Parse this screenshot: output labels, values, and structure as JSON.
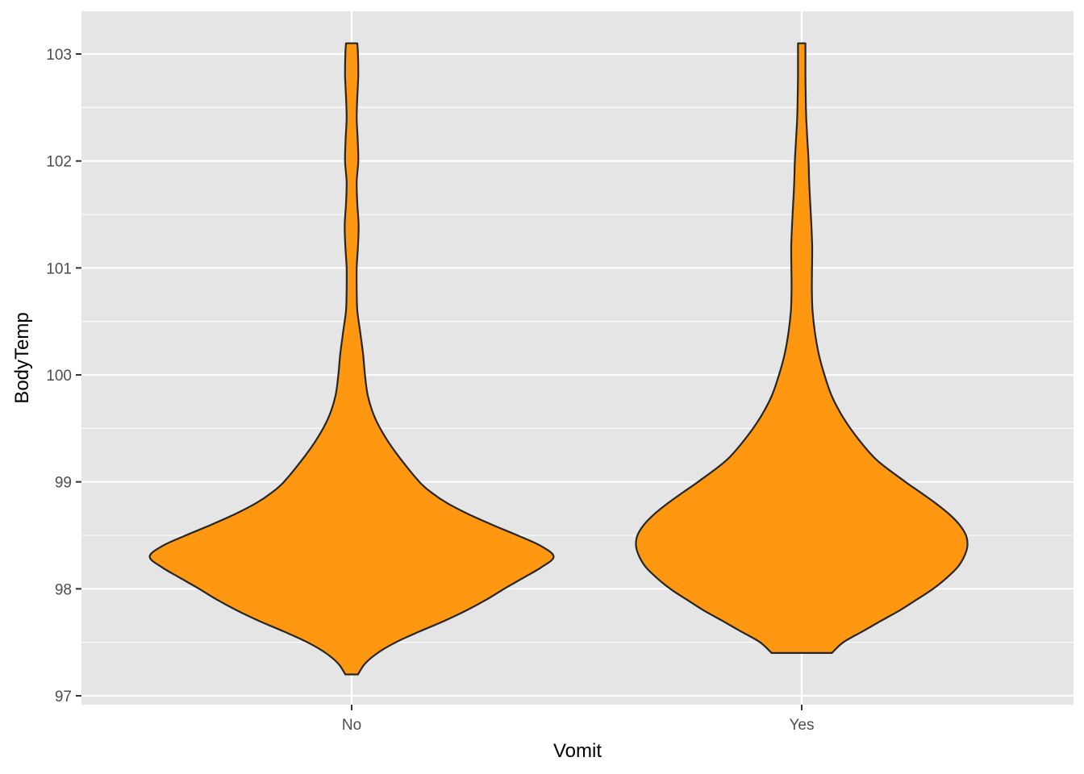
{
  "chart_data": {
    "type": "violin",
    "title": "",
    "xlabel": "Vomit",
    "ylabel": "BodyTemp",
    "categories": [
      "No",
      "Yes"
    ],
    "y_ticks": [
      "97",
      "98",
      "99",
      "100",
      "101",
      "102",
      "103"
    ],
    "ylim": [
      96.92,
      103.4
    ],
    "grid": true,
    "legend": "none",
    "fill_color": "#FF9810",
    "outline_color": "#262626",
    "panel_color": "#E5E5E5",
    "violins": [
      {
        "category": "No",
        "y_range": [
          97.2,
          103.1
        ],
        "profile": [
          [
            97.2,
            0.049
          ],
          [
            97.3,
            0.103
          ],
          [
            97.4,
            0.201
          ],
          [
            97.5,
            0.342
          ],
          [
            97.6,
            0.523
          ],
          [
            97.7,
            0.718
          ],
          [
            97.8,
            0.892
          ],
          [
            97.9,
            1.046
          ],
          [
            98.0,
            1.182
          ],
          [
            98.1,
            1.326
          ],
          [
            98.2,
            1.468
          ],
          [
            98.3,
            1.565
          ],
          [
            98.4,
            1.468
          ],
          [
            98.5,
            1.285
          ],
          [
            98.6,
            1.087
          ],
          [
            98.7,
            0.902
          ],
          [
            98.8,
            0.742
          ],
          [
            98.9,
            0.618
          ],
          [
            99.0,
            0.525
          ],
          [
            99.2,
            0.388
          ],
          [
            99.4,
            0.27
          ],
          [
            99.6,
            0.18
          ],
          [
            99.8,
            0.126
          ],
          [
            100.0,
            0.103
          ],
          [
            100.2,
            0.088
          ],
          [
            100.4,
            0.066
          ],
          [
            100.6,
            0.044
          ],
          [
            100.8,
            0.039
          ],
          [
            101.0,
            0.039
          ],
          [
            101.2,
            0.049
          ],
          [
            101.4,
            0.054
          ],
          [
            101.6,
            0.044
          ],
          [
            101.8,
            0.039
          ],
          [
            102.0,
            0.051
          ],
          [
            102.2,
            0.047
          ],
          [
            102.4,
            0.039
          ],
          [
            102.6,
            0.044
          ],
          [
            102.8,
            0.051
          ],
          [
            103.0,
            0.049
          ],
          [
            103.1,
            0.044
          ]
        ]
      },
      {
        "category": "Yes",
        "y_range": [
          97.4,
          103.1
        ],
        "profile": [
          [
            97.4,
            0.234
          ],
          [
            97.5,
            0.322
          ],
          [
            97.6,
            0.468
          ],
          [
            97.7,
            0.614
          ],
          [
            97.8,
            0.761
          ],
          [
            97.9,
            0.892
          ],
          [
            98.0,
            1.019
          ],
          [
            98.1,
            1.121
          ],
          [
            98.2,
            1.206
          ],
          [
            98.3,
            1.258
          ],
          [
            98.4,
            1.284
          ],
          [
            98.5,
            1.273
          ],
          [
            98.6,
            1.222
          ],
          [
            98.7,
            1.141
          ],
          [
            98.8,
            1.038
          ],
          [
            98.9,
            0.922
          ],
          [
            99.0,
            0.804
          ],
          [
            99.2,
            0.585
          ],
          [
            99.4,
            0.439
          ],
          [
            99.6,
            0.322
          ],
          [
            99.8,
            0.234
          ],
          [
            100.0,
            0.176
          ],
          [
            100.2,
            0.131
          ],
          [
            100.4,
            0.102
          ],
          [
            100.6,
            0.084
          ],
          [
            100.8,
            0.079
          ],
          [
            101.0,
            0.08
          ],
          [
            101.2,
            0.081
          ],
          [
            101.4,
            0.075
          ],
          [
            101.6,
            0.066
          ],
          [
            101.8,
            0.058
          ],
          [
            102.0,
            0.053
          ],
          [
            102.2,
            0.044
          ],
          [
            102.4,
            0.035
          ],
          [
            102.6,
            0.031
          ],
          [
            102.8,
            0.029
          ],
          [
            103.0,
            0.029
          ],
          [
            103.1,
            0.029
          ]
        ]
      }
    ]
  }
}
